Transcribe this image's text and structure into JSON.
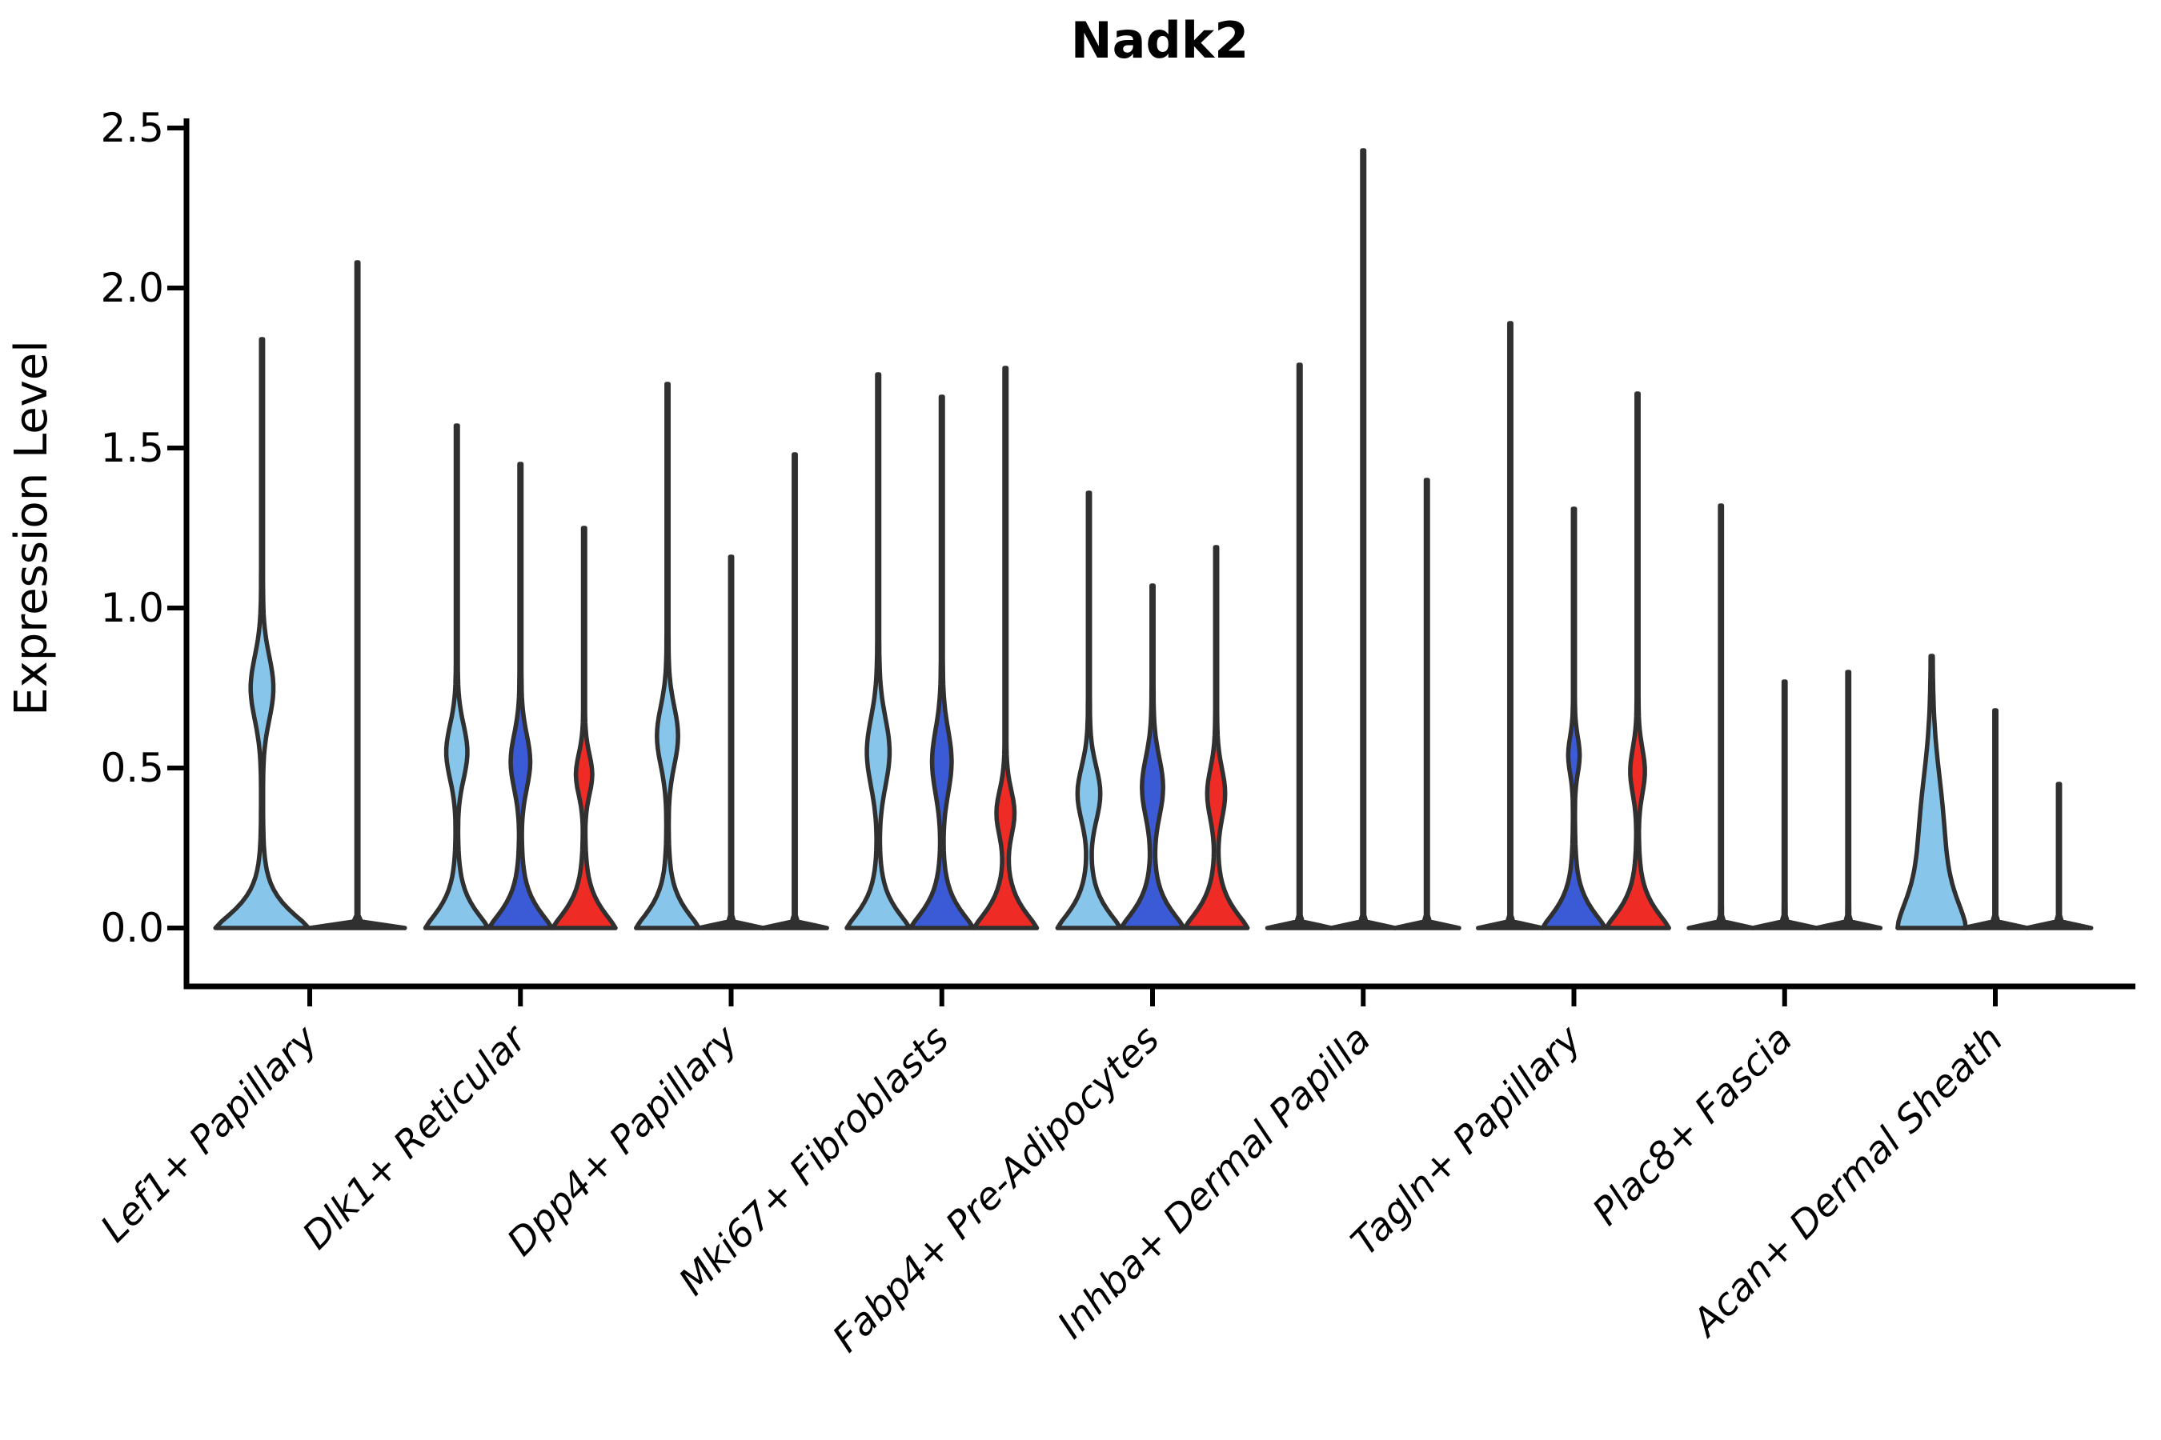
{
  "title": "Nadk2",
  "y_axis": {
    "label": "Expression Level",
    "ticks": [
      "0.0",
      "0.5",
      "1.0",
      "1.5",
      "2.0",
      "2.5"
    ],
    "tick_values": [
      0,
      0.5,
      1.0,
      1.5,
      2.0,
      2.5
    ]
  },
  "colors": {
    "light_blue": "#87C6EA",
    "blue": "#3B5BD6",
    "red": "#EF2B25",
    "outline": "#303030",
    "axis": "#000000"
  },
  "chart_data": {
    "type": "violin",
    "title": "Nadk2",
    "ylabel": "Expression Level",
    "ylim": [
      0,
      2.5
    ],
    "grid": false,
    "legend": "none",
    "groups": [
      {
        "label": "Lef1+ Papillary",
        "violins": [
          {
            "color": "light_blue",
            "kind": "violin",
            "max": 1.84,
            "base_hw": 57,
            "bulge": {
              "c": 0.75,
              "s": 0.14,
              "hw": 13
            }
          },
          {
            "color": "outline",
            "kind": "spike",
            "max": 2.08,
            "base_hw": 58
          }
        ]
      },
      {
        "label": "Dlk1+ Reticular",
        "violins": [
          {
            "color": "light_blue",
            "kind": "violin",
            "max": 1.57,
            "base_hw": 38,
            "bulge": {
              "c": 0.55,
              "s": 0.12,
              "hw": 12
            }
          },
          {
            "color": "blue",
            "kind": "violin",
            "max": 1.45,
            "base_hw": 38,
            "bulge": {
              "c": 0.52,
              "s": 0.12,
              "hw": 11
            }
          },
          {
            "color": "red",
            "kind": "violin",
            "max": 1.25,
            "base_hw": 38,
            "bulge": {
              "c": 0.48,
              "s": 0.09,
              "hw": 9
            }
          }
        ]
      },
      {
        "label": "Dpp4+ Papillary",
        "violins": [
          {
            "color": "light_blue",
            "kind": "violin",
            "max": 1.7,
            "base_hw": 38,
            "bulge": {
              "c": 0.6,
              "s": 0.13,
              "hw": 12
            }
          },
          {
            "color": "outline",
            "kind": "spike",
            "max": 1.16,
            "base_hw": 39
          },
          {
            "color": "outline",
            "kind": "spike",
            "max": 1.48,
            "base_hw": 39
          }
        ]
      },
      {
        "label": "Mki67+ Fibroblasts",
        "violins": [
          {
            "color": "light_blue",
            "kind": "violin",
            "max": 1.73,
            "base_hw": 38,
            "bulge": {
              "c": 0.55,
              "s": 0.15,
              "hw": 13
            }
          },
          {
            "color": "blue",
            "kind": "violin",
            "max": 1.66,
            "base_hw": 38,
            "bulge": {
              "c": 0.52,
              "s": 0.14,
              "hw": 11
            }
          },
          {
            "color": "red",
            "kind": "violin",
            "max": 1.75,
            "base_hw": 38,
            "bulge": {
              "c": 0.36,
              "s": 0.1,
              "hw": 10
            }
          }
        ]
      },
      {
        "label": "Fabp4+ Pre-Adipocytes",
        "violins": [
          {
            "color": "light_blue",
            "kind": "violin",
            "max": 1.36,
            "base_hw": 38,
            "bulge": {
              "c": 0.42,
              "s": 0.12,
              "hw": 13
            }
          },
          {
            "color": "blue",
            "kind": "violin",
            "max": 1.07,
            "base_hw": 38,
            "bulge": {
              "c": 0.44,
              "s": 0.13,
              "hw": 12
            }
          },
          {
            "color": "red",
            "kind": "violin",
            "max": 1.19,
            "base_hw": 38,
            "bulge": {
              "c": 0.42,
              "s": 0.11,
              "hw": 10
            }
          }
        ]
      },
      {
        "label": "Inhba+ Dermal Papilla",
        "violins": [
          {
            "color": "outline",
            "kind": "spike",
            "max": 1.76,
            "base_hw": 39
          },
          {
            "color": "outline",
            "kind": "spike",
            "max": 2.43,
            "base_hw": 39
          },
          {
            "color": "outline",
            "kind": "spike",
            "max": 1.4,
            "base_hw": 39
          }
        ]
      },
      {
        "label": "Tagln+ Papillary",
        "violins": [
          {
            "color": "outline",
            "kind": "spike",
            "max": 1.89,
            "base_hw": 39
          },
          {
            "color": "blue",
            "kind": "violin",
            "max": 1.31,
            "base_hw": 38,
            "bulge": {
              "c": 0.54,
              "s": 0.08,
              "hw": 6
            }
          },
          {
            "color": "red",
            "kind": "violin",
            "max": 1.67,
            "base_hw": 38,
            "bulge": {
              "c": 0.49,
              "s": 0.1,
              "hw": 8
            }
          }
        ]
      },
      {
        "label": "Plac8+ Fascia",
        "violins": [
          {
            "color": "outline",
            "kind": "spike",
            "max": 1.32,
            "base_hw": 39
          },
          {
            "color": "outline",
            "kind": "spike",
            "max": 0.77,
            "base_hw": 39
          },
          {
            "color": "outline",
            "kind": "spike",
            "max": 0.8,
            "base_hw": 39
          }
        ]
      },
      {
        "label": "Acan+ Dermal Sheath",
        "violins": [
          {
            "color": "light_blue",
            "kind": "violin",
            "max": 0.85,
            "base_hw": 38,
            "base_sigma": 0.15,
            "base_p": 1.5,
            "bulge": {
              "c": 0.3,
              "s": 0.26,
              "hw": 13
            }
          },
          {
            "color": "outline",
            "kind": "spike",
            "max": 0.68,
            "base_hw": 39
          },
          {
            "color": "outline",
            "kind": "spike",
            "max": 0.45,
            "base_hw": 39
          }
        ]
      }
    ]
  }
}
